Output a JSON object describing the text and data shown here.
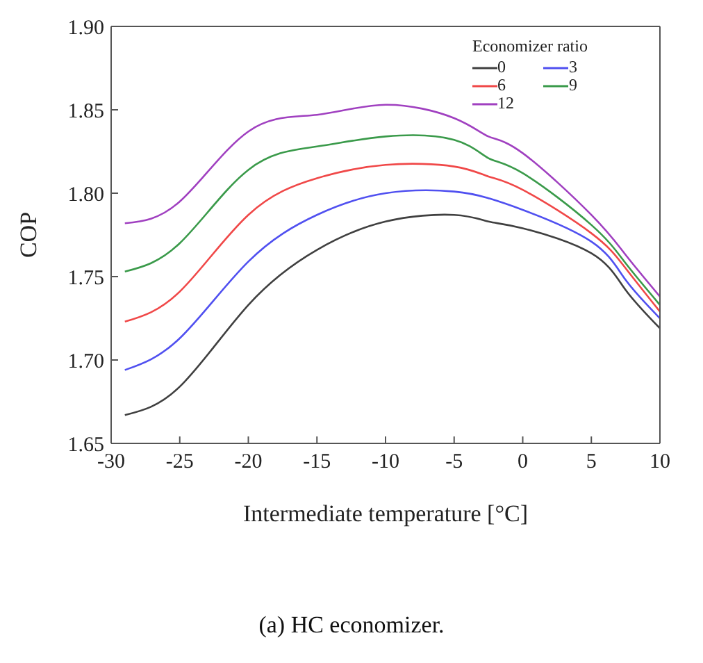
{
  "chart_data": {
    "type": "line",
    "title": "(a) HC economizer.",
    "xlabel": "Intermediate  temperature  [°C]",
    "ylabel": "COP",
    "legend_title": "Economizer ratio",
    "legend": "top right",
    "grid": false,
    "marker": "none",
    "line_style": "solid",
    "x": [
      -29,
      -25,
      -20,
      -15,
      -10,
      -5,
      -2.5,
      0,
      5,
      7.5,
      10
    ],
    "xlim": [
      -30,
      10
    ],
    "xticks": [
      -30,
      -25,
      -20,
      -15,
      -10,
      -5,
      0,
      5,
      10
    ],
    "ylim": [
      1.65,
      1.9
    ],
    "yticks": [
      1.65,
      {
        "value": 1.7,
        "label": "1.70"
      },
      1.75,
      {
        "value": 1.8,
        "label": "1.80"
      },
      1.85,
      {
        "value": 1.9,
        "label": "1.90"
      }
    ],
    "series": [
      {
        "name": "0",
        "color": "#404040",
        "values": [
          1.667,
          1.684,
          1.733,
          1.766,
          1.783,
          1.787,
          1.783,
          1.779,
          1.764,
          1.742,
          1.719
        ]
      },
      {
        "name": "3",
        "color": "#5050f0",
        "values": [
          1.694,
          1.713,
          1.759,
          1.787,
          1.8,
          1.801,
          1.797,
          1.79,
          1.771,
          1.748,
          1.725
        ]
      },
      {
        "name": "6",
        "color": "#f04848",
        "values": [
          1.723,
          1.741,
          1.787,
          1.809,
          1.817,
          1.816,
          1.81,
          1.802,
          1.776,
          1.755,
          1.729
        ]
      },
      {
        "name": "9",
        "color": "#3a9a4a",
        "values": [
          1.753,
          1.77,
          1.814,
          1.828,
          1.834,
          1.832,
          1.821,
          1.812,
          1.781,
          1.758,
          1.733
        ]
      },
      {
        "name": "12",
        "color": "#a040c0",
        "values": [
          1.782,
          1.795,
          1.837,
          1.847,
          1.853,
          1.845,
          1.834,
          1.824,
          1.787,
          1.763,
          1.738
        ]
      }
    ]
  }
}
